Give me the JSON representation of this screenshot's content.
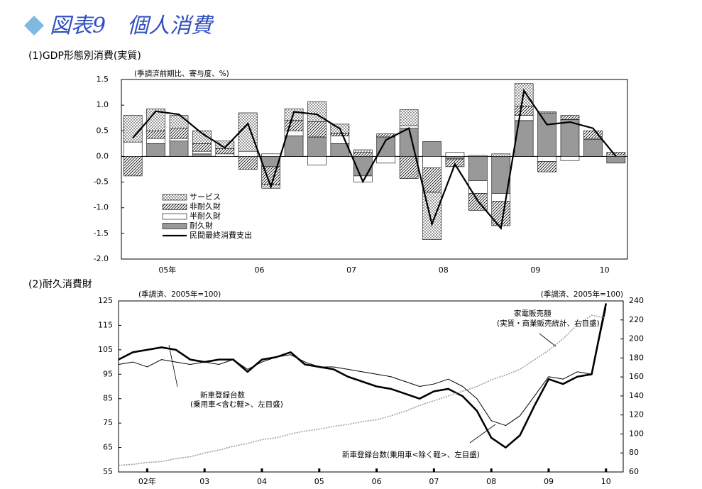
{
  "header": {
    "title": "図表9　個人消費"
  },
  "chart_data": [
    {
      "type": "stacked_bar_line",
      "title": "(1)GDP形態別消費(実質)",
      "annotation": "(季調済前期比、寄与度、%)",
      "categories": [
        null,
        "05年",
        null,
        null,
        null,
        "06",
        null,
        null,
        null,
        "07",
        null,
        null,
        null,
        "08",
        null,
        null,
        null,
        "09",
        null,
        null,
        "10",
        null
      ],
      "series": [
        {
          "name": "サービス",
          "type": "bar",
          "pattern": "dots",
          "color": "#ffffff",
          "values": [
            0.52,
            0.43,
            0.25,
            0.25,
            0.15,
            0.75,
            -0.07,
            0.23,
            0.39,
            0.18,
            0.05,
            0,
            0.31,
            -0.92,
            0,
            0.02,
            0.05,
            0.44,
            0.02,
            0,
            0,
            0
          ]
        },
        {
          "name": "非耐久財",
          "type": "bar",
          "pattern": "hatch",
          "color": "#ffffff",
          "values": [
            -0.38,
            0.15,
            0.2,
            0.15,
            0.1,
            -0.25,
            -0.35,
            0.2,
            0.3,
            0.05,
            0.08,
            0.06,
            -0.43,
            -0.48,
            -0.15,
            -0.33,
            -0.48,
            0.18,
            -0.2,
            0.08,
            0.15,
            0.05
          ]
        },
        {
          "name": "半耐久財",
          "type": "bar",
          "pattern": null,
          "color": "#ffffff",
          "values": [
            0.28,
            0.1,
            0.05,
            0.05,
            0.05,
            0.1,
            0.05,
            0.1,
            -0.17,
            0.15,
            -0.12,
            -0.13,
            0.05,
            -0.22,
            0.08,
            -0.25,
            -0.15,
            0.1,
            -0.1,
            -0.08,
            0.02,
            0.03
          ]
        },
        {
          "name": "耐久財",
          "type": "bar",
          "pattern": null,
          "color": "#999999",
          "values": [
            0,
            0.25,
            0.3,
            0.05,
            0,
            0,
            -0.2,
            0.4,
            0.38,
            0.25,
            -0.38,
            0.38,
            0.55,
            0.29,
            -0.05,
            -0.47,
            -0.72,
            0.7,
            0.85,
            0.72,
            0.33,
            -0.13
          ]
        },
        {
          "name": "民間最終消費支出",
          "type": "line",
          "color": "#000000",
          "values": [
            0.36,
            0.88,
            0.82,
            0.45,
            0.17,
            0.64,
            -0.59,
            0.87,
            0.82,
            0.54,
            -0.49,
            0.32,
            0.55,
            -1.32,
            -0.15,
            -0.87,
            -1.4,
            1.28,
            0.62,
            0.67,
            0.55,
            0.0
          ]
        }
      ],
      "ylim": [
        -2,
        1.5
      ],
      "yticks": [
        1.5,
        {
          "value": 1,
          "label": "1.0"
        },
        0.5,
        {
          "value": 0,
          "label": "0.0"
        },
        -0.5,
        {
          "value": -1,
          "label": "-1.0"
        },
        -1.5,
        {
          "value": -2,
          "label": "-2.0"
        }
      ],
      "legend": "lower left"
    },
    {
      "type": "line",
      "title": "(2)耐久消費財",
      "annotation": "(季調済、2005年=100)",
      "annotation_right": "(季調済、2005年=100)",
      "x": [
        2002,
        2002.25,
        2002.5,
        2002.75,
        2003,
        2003.25,
        2003.5,
        2003.75,
        2004,
        2004.25,
        2004.5,
        2004.75,
        2005,
        2005.25,
        2005.5,
        2005.75,
        2006,
        2006.25,
        2006.5,
        2006.75,
        2007,
        2007.25,
        2007.5,
        2007.75,
        2008,
        2008.25,
        2008.5,
        2008.75,
        2009,
        2009.25,
        2009.5,
        2009.75,
        2010,
        2010.25,
        2010.5
      ],
      "series": [
        {
          "name": "新車登録台数",
          "note": "(乗用車<含む軽>、左目盛)",
          "color": "#000000",
          "width": 1,
          "values": [
            99,
            100,
            98,
            101,
            100,
            99,
            100,
            99,
            101,
            97,
            100,
            102,
            103,
            100,
            98,
            98,
            97,
            96,
            95,
            94,
            92,
            90,
            91,
            93,
            90,
            85,
            76,
            74,
            78,
            86,
            94,
            93,
            96,
            95,
            122
          ]
        },
        {
          "name": "新車登録台数",
          "note": "(乗用車<除く軽>、左目盛)",
          "color": "#000000",
          "width": 2.6,
          "values": [
            101,
            104,
            105,
            106,
            105,
            101,
            100,
            101,
            101,
            96,
            101,
            102,
            104,
            99,
            98,
            97,
            94,
            92,
            90,
            89,
            87,
            85,
            88,
            89,
            86,
            80,
            69,
            65,
            70,
            82,
            93,
            91,
            94,
            95,
            124
          ]
        },
        {
          "name": "家電販売額",
          "note": "(実質・商業販売統計、右目盛)",
          "color": "#a0a0a0",
          "width": 1.6,
          "axis": "y2",
          "values": [
            67,
            68,
            70,
            71,
            74,
            76,
            80,
            83,
            87,
            90,
            94,
            96,
            100,
            103,
            105,
            108,
            110,
            113,
            115,
            119,
            124,
            130,
            135,
            140,
            145,
            150,
            157,
            162,
            168,
            178,
            188,
            200,
            215,
            225,
            222
          ]
        }
      ],
      "xlim": [
        2002,
        2010.8
      ],
      "xticks": [
        {
          "value": 2002.5,
          "label": "02年"
        },
        {
          "value": 2003.5,
          "label": "03"
        },
        {
          "value": 2004.5,
          "label": "04"
        },
        {
          "value": 2005.5,
          "label": "05"
        },
        {
          "value": 2006.5,
          "label": "06"
        },
        {
          "value": 2007.5,
          "label": "07"
        },
        {
          "value": 2008.5,
          "label": "08"
        },
        {
          "value": 2009.5,
          "label": "09"
        },
        {
          "value": 2010.5,
          "label": "10"
        }
      ],
      "ylim": [
        55,
        125
      ],
      "yticks": [
        55,
        65,
        75,
        85,
        95,
        105,
        115,
        125
      ],
      "y2lim": [
        60,
        240
      ],
      "y2ticks": [
        60,
        80,
        100,
        120,
        140,
        160,
        180,
        200,
        220,
        240
      ]
    }
  ]
}
